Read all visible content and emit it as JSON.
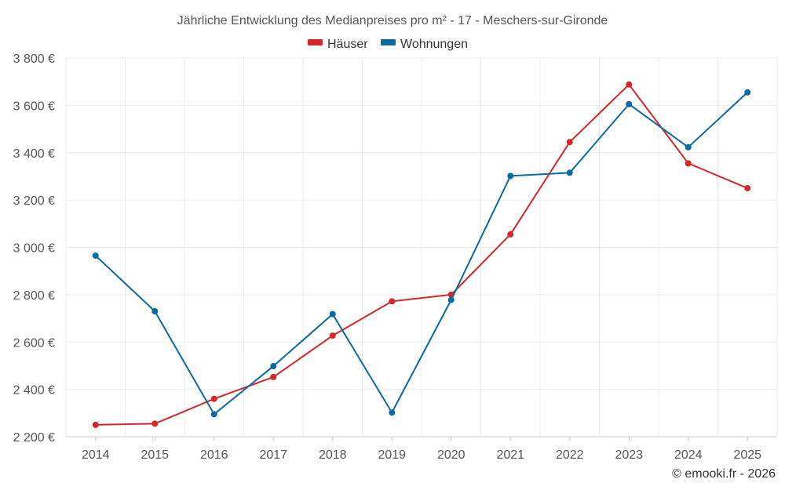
{
  "colors": {
    "haeuser": "#d62728",
    "wohnungen": "#0a6aa1"
  },
  "chart_data": {
    "type": "line",
    "title": "Jährliche Entwicklung des Medianpreises pro m² - 17 - Meschers-sur-Gironde",
    "xlabel": "",
    "ylabel": "",
    "x": [
      2014,
      2015,
      2016,
      2017,
      2018,
      2019,
      2020,
      2021,
      2022,
      2023,
      2024,
      2025
    ],
    "x_tick_labels": [
      "2014",
      "2015",
      "2016",
      "2017",
      "2018",
      "2019",
      "2020",
      "2021",
      "2022",
      "2023",
      "2024",
      "2025"
    ],
    "ylim": [
      2200,
      3800
    ],
    "y_ticks": [
      2200,
      2400,
      2600,
      2800,
      3000,
      3200,
      3400,
      3600,
      3800
    ],
    "y_tick_labels": [
      "2 200 €",
      "2 400 €",
      "2 600 €",
      "2 800 €",
      "3 000 €",
      "3 200 €",
      "3 400 €",
      "3 600 €",
      "3 800 €"
    ],
    "grid": true,
    "legend_position": "top-center",
    "series": [
      {
        "name": "Häuser",
        "color": "#d62728",
        "values": [
          2250,
          2255,
          2360,
          2452,
          2627,
          2772,
          2800,
          3055,
          3445,
          3688,
          3355,
          3250
        ]
      },
      {
        "name": "Wohnungen",
        "color": "#0a6aa1",
        "values": [
          2965,
          2730,
          2295,
          2498,
          2718,
          2302,
          2778,
          3302,
          3315,
          3605,
          3423,
          3655
        ]
      }
    ]
  },
  "credit": "© emooki.fr - 2026"
}
